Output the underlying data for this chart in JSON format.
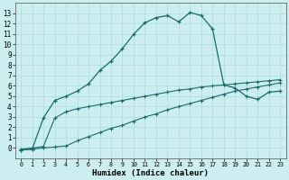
{
  "xlabel": "Humidex (Indice chaleur)",
  "bg_color": "#cceef0",
  "grid_color": "#aaddde",
  "line_color": "#1a6b6b",
  "xlim": [
    -0.5,
    23.5
  ],
  "ylim": [
    -1.0,
    14.0
  ],
  "xticks": [
    0,
    1,
    2,
    3,
    4,
    5,
    6,
    7,
    8,
    9,
    10,
    11,
    12,
    13,
    14,
    15,
    16,
    17,
    18,
    19,
    20,
    21,
    22,
    23
  ],
  "yticks": [
    0,
    1,
    2,
    3,
    4,
    5,
    6,
    7,
    8,
    9,
    10,
    11,
    12,
    13
  ],
  "curve1_x": [
    0,
    1,
    2,
    3,
    4,
    5,
    6,
    7,
    8,
    9,
    10,
    11,
    12,
    13,
    14,
    15,
    16,
    17,
    18,
    19,
    20,
    21,
    22,
    23
  ],
  "curve1_y": [
    -0.2,
    -0.1,
    2.9,
    4.6,
    5.0,
    5.5,
    6.2,
    7.5,
    8.4,
    9.6,
    11.0,
    12.1,
    12.6,
    12.8,
    12.2,
    13.1,
    12.8,
    11.5,
    6.1,
    5.8,
    5.0,
    4.7,
    5.4,
    5.5
  ],
  "curve2_x": [
    0,
    1,
    2,
    3,
    4,
    5,
    6,
    7,
    8,
    9,
    10,
    11,
    12,
    13,
    14,
    15,
    16,
    17,
    18,
    19,
    20,
    21,
    22,
    23
  ],
  "curve2_y": [
    -0.1,
    0.0,
    0.15,
    2.9,
    3.5,
    3.8,
    4.0,
    4.2,
    4.4,
    4.6,
    4.8,
    5.0,
    5.2,
    5.4,
    5.6,
    5.7,
    5.9,
    6.0,
    6.1,
    6.2,
    6.3,
    6.4,
    6.5,
    6.6
  ],
  "curve3_x": [
    0,
    1,
    2,
    3,
    4,
    5,
    6,
    7,
    8,
    9,
    10,
    11,
    12,
    13,
    14,
    15,
    16,
    17,
    18,
    19,
    20,
    21,
    22,
    23
  ],
  "curve3_y": [
    -0.2,
    -0.1,
    -0.0,
    0.1,
    0.2,
    0.7,
    1.1,
    1.5,
    1.9,
    2.2,
    2.6,
    3.0,
    3.3,
    3.7,
    4.0,
    4.3,
    4.6,
    4.9,
    5.2,
    5.5,
    5.7,
    5.9,
    6.1,
    6.3
  ]
}
